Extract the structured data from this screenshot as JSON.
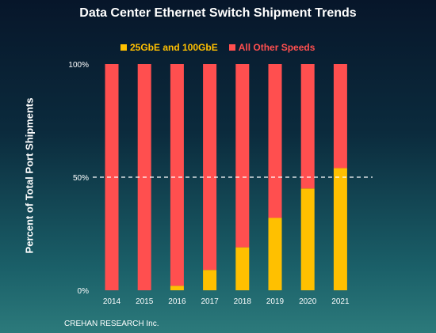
{
  "chart_data": {
    "type": "bar",
    "stacked": true,
    "title": "Data Center Ethernet Switch Shipment Trends",
    "ylabel": "Percent of Total Port Shipments",
    "xlabel": "",
    "ylim": [
      0,
      100
    ],
    "y_ticks": [
      "0%",
      "50%",
      "100%"
    ],
    "reference_line": 50,
    "grid": false,
    "legend_position": "top",
    "categories": [
      "2014",
      "2015",
      "2016",
      "2017",
      "2018",
      "2019",
      "2020",
      "2021"
    ],
    "series": [
      {
        "name": "25GbE and 100GbE",
        "color": "#ffc000",
        "values": [
          0,
          0,
          2,
          9,
          19,
          32,
          45,
          54
        ]
      },
      {
        "name": "All Other Speeds",
        "color": "#ff4f4f",
        "values": [
          100,
          100,
          98,
          91,
          81,
          68,
          55,
          46
        ]
      }
    ]
  },
  "source": "CREHAN RESEARCH Inc."
}
